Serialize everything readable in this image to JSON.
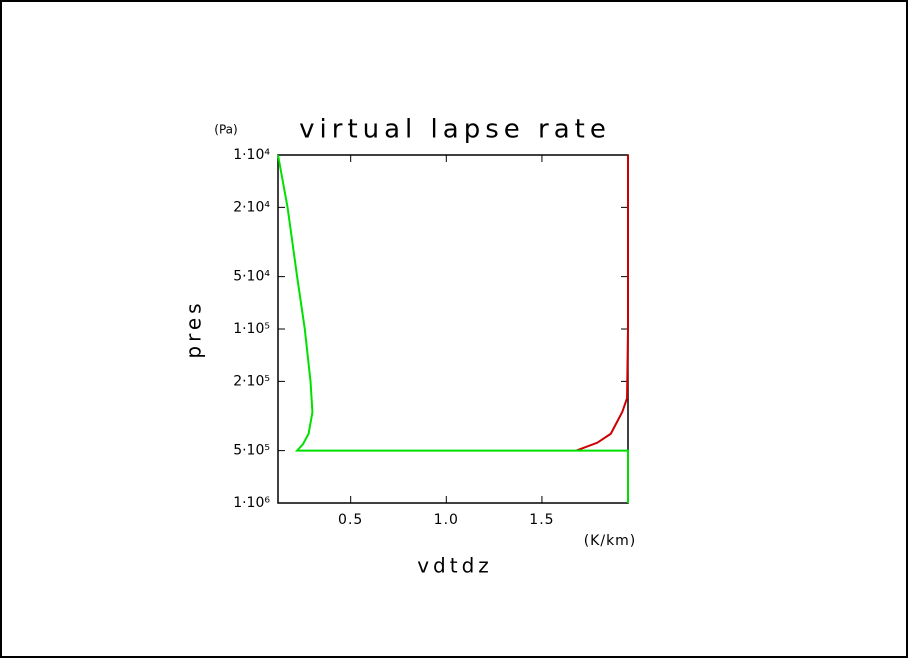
{
  "chart_data": {
    "type": "line",
    "title": "virtual lapse rate",
    "y_unit": "(Pa)",
    "x_unit": "(K/km)",
    "xlabel": "vdtdz",
    "ylabel": "pres",
    "xlim": [
      0.12,
      1.95
    ],
    "ylim": [
      1000000,
      10000
    ],
    "ylog": true,
    "xticks": [
      0.5,
      {
        "value": 1,
        "label": "1.0"
      },
      1.5
    ],
    "yticks": [
      {
        "value": 10000,
        "label": "1·10⁴"
      },
      {
        "value": 20000,
        "label": "2·10⁴"
      },
      {
        "value": 50000,
        "label": "5·10⁴"
      },
      {
        "value": 100000,
        "label": "1·10⁵"
      },
      {
        "value": 200000,
        "label": "2·10⁵"
      },
      {
        "value": 500000,
        "label": "5·10⁵"
      },
      {
        "value": 1000000,
        "label": "1·10⁶"
      }
    ],
    "series": [
      {
        "color": "#cc0000",
        "x": [
          1.95,
          1.95,
          1.95,
          1.95,
          1.945,
          1.92,
          1.86,
          1.79,
          1.68
        ],
        "y": [
          10000,
          20000,
          50000,
          100000,
          250000,
          300000,
          400000,
          450000,
          500000
        ]
      },
      {
        "color": "#00e000",
        "x": [
          0.12,
          0.17,
          0.22,
          0.26,
          0.29,
          0.3,
          0.28,
          0.25,
          0.22,
          1.95,
          1.95
        ],
        "y": [
          10000,
          20000,
          50000,
          100000,
          200000,
          300000,
          400000,
          460000,
          500000,
          500000,
          1000000
        ]
      }
    ]
  }
}
